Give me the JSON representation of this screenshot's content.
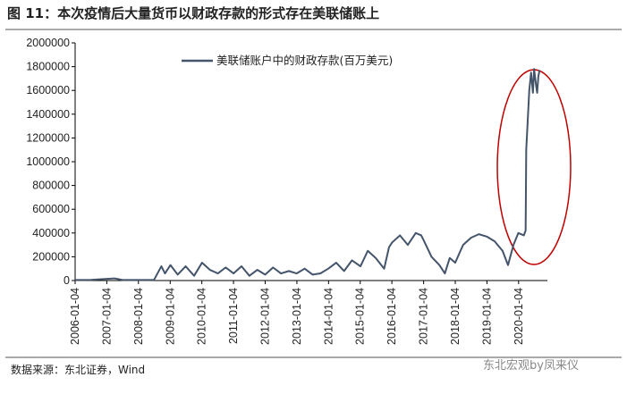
{
  "chart_data": {
    "type": "line",
    "title": "图 11：本次疫情后大量货币以财政存款的形式存在美联储账上",
    "source": "数据来源：东北证券，Wind",
    "watermark": "东北宏观by凤来仪",
    "x": [
      "2006-01-04",
      "2006-07-05",
      "2007-04-04",
      "2007-07-04",
      "2008-01-02",
      "2008-07-02",
      "2008-09-24",
      "2008-11-05",
      "2009-01-07",
      "2009-04-01",
      "2009-07-01",
      "2009-10-07",
      "2010-01-06",
      "2010-04-07",
      "2010-07-07",
      "2010-10-06",
      "2011-01-05",
      "2011-04-06",
      "2011-07-06",
      "2011-10-05",
      "2012-01-04",
      "2012-04-04",
      "2012-07-04",
      "2012-10-03",
      "2013-01-02",
      "2013-04-03",
      "2013-07-03",
      "2013-10-02",
      "2014-01-01",
      "2014-04-02",
      "2014-07-02",
      "2014-10-01",
      "2015-01-07",
      "2015-04-01",
      "2015-07-01",
      "2015-10-07",
      "2015-12-02",
      "2016-01-06",
      "2016-04-06",
      "2016-07-06",
      "2016-10-05",
      "2016-12-07",
      "2017-01-04",
      "2017-04-05",
      "2017-07-05",
      "2017-09-06",
      "2017-11-01",
      "2018-01-03",
      "2018-04-04",
      "2018-07-04",
      "2018-10-03",
      "2019-01-02",
      "2019-04-03",
      "2019-07-03",
      "2019-09-04",
      "2019-11-06",
      "2020-01-01",
      "2020-03-04",
      "2020-03-25",
      "2020-04-01",
      "2020-04-15",
      "2020-05-06",
      "2020-05-27",
      "2020-06-17",
      "2020-07-01",
      "2020-07-22",
      "2020-08-05",
      "2020-08-19",
      "2020-09-02"
    ],
    "series": [
      {
        "name": "美联储账户中的财政存款(百万美元)",
        "color": "#44546a",
        "values": [
          5000,
          6000,
          18000,
          5000,
          5000,
          6000,
          120000,
          60000,
          130000,
          50000,
          120000,
          40000,
          150000,
          90000,
          60000,
          110000,
          60000,
          120000,
          40000,
          90000,
          50000,
          110000,
          60000,
          80000,
          60000,
          100000,
          50000,
          60000,
          100000,
          150000,
          80000,
          170000,
          120000,
          250000,
          190000,
          100000,
          280000,
          320000,
          380000,
          300000,
          400000,
          380000,
          340000,
          200000,
          130000,
          60000,
          190000,
          150000,
          300000,
          360000,
          390000,
          370000,
          330000,
          250000,
          130000,
          300000,
          400000,
          380000,
          420000,
          1100000,
          1300000,
          1600000,
          1750000,
          1580000,
          1780000,
          1650000,
          1580000,
          1720000,
          1770000
        ]
      }
    ],
    "xlim": [
      "2006-01-04",
      "2020-12-01"
    ],
    "xticks": [
      "2006-01-04",
      "2007-01-04",
      "2008-01-04",
      "2009-01-04",
      "2010-01-04",
      "2011-01-04",
      "2012-01-04",
      "2013-01-04",
      "2014-01-04",
      "2015-01-04",
      "2016-01-04",
      "2017-01-04",
      "2018-01-04",
      "2019-01-04",
      "2020-01-04"
    ],
    "ylim": [
      0,
      2000000
    ],
    "yticks": [
      0,
      200000,
      400000,
      600000,
      800000,
      1000000,
      1200000,
      1400000,
      1600000,
      1800000,
      2000000
    ],
    "legend": "top"
  }
}
